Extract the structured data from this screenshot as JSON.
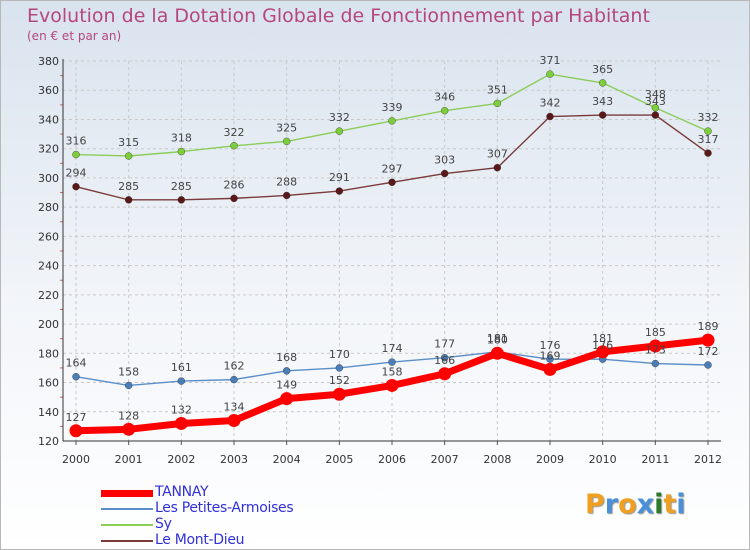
{
  "title": "Evolution de la Dotation Globale de Fonctionnement par Habitant",
  "subtitle": "(en € et par an)",
  "logo": {
    "letters": [
      "P",
      "r",
      "o",
      "x",
      "i",
      "t",
      "i"
    ],
    "colors": [
      "#f0a020",
      "#4a90d9",
      "#f0a020",
      "#4a90d9",
      "#2a7a2a",
      "#f0a020",
      "#4a90d9"
    ]
  },
  "chart_data": {
    "type": "line",
    "title": "Evolution de la Dotation Globale de Fonctionnement par Habitant",
    "subtitle": "(en € et par an)",
    "x": [
      "2000",
      "2001",
      "2002",
      "2003",
      "2004",
      "2005",
      "2006",
      "2007",
      "2008",
      "2009",
      "2010",
      "2011",
      "2012"
    ],
    "ylim": [
      120,
      380
    ],
    "yticks": [
      120,
      140,
      160,
      180,
      200,
      220,
      240,
      260,
      280,
      300,
      320,
      340,
      360,
      380
    ],
    "grid": true,
    "legend_position": "bottom-left",
    "series": [
      {
        "name": "Sy",
        "color": "#8ccd5a",
        "point_color": "#7ccf3a",
        "values": [
          316,
          315,
          318,
          322,
          325,
          332,
          339,
          346,
          351,
          371,
          365,
          348,
          332
        ]
      },
      {
        "name": "Le Mont-Dieu",
        "color": "#7a3a3a",
        "point_color": "#5a1818",
        "values": [
          294,
          285,
          285,
          286,
          288,
          291,
          297,
          303,
          307,
          342,
          343,
          343,
          317
        ]
      },
      {
        "name": "Les Petites-Armoises",
        "color": "#5a8ec8",
        "point_color": "#4a7eb8",
        "values": [
          164,
          158,
          161,
          162,
          168,
          170,
          174,
          177,
          181,
          176,
          176,
          173,
          172
        ]
      },
      {
        "name": "TANNAY",
        "color": "#ff0000",
        "point_color": "#ff0000",
        "values": [
          127,
          128,
          132,
          134,
          149,
          152,
          158,
          166,
          180,
          169,
          181,
          185,
          189
        ]
      }
    ],
    "legend": [
      "TANNAY",
      "Les Petites-Armoises",
      "Sy",
      "Le Mont-Dieu"
    ]
  }
}
